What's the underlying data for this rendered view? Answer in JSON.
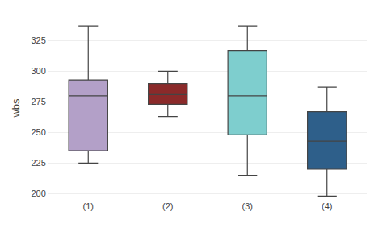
{
  "chart_data": {
    "type": "box",
    "categories": [
      "(1)",
      "(2)",
      "(3)",
      "(4)"
    ],
    "whislo": [
      225,
      263,
      215,
      198
    ],
    "q1": [
      235,
      273,
      248,
      220
    ],
    "med": [
      280,
      281,
      280,
      243
    ],
    "q3": [
      293,
      290,
      317,
      267
    ],
    "whishi": [
      337,
      300,
      337,
      287
    ],
    "colors": [
      "#b3a0c8",
      "#8b2a2a",
      "#7ecece",
      "#2e5f8a"
    ],
    "ylabel": "wbs",
    "ylim": [
      195,
      345
    ],
    "yticks": [
      200,
      225,
      250,
      275,
      300,
      325
    ],
    "grid": true
  }
}
